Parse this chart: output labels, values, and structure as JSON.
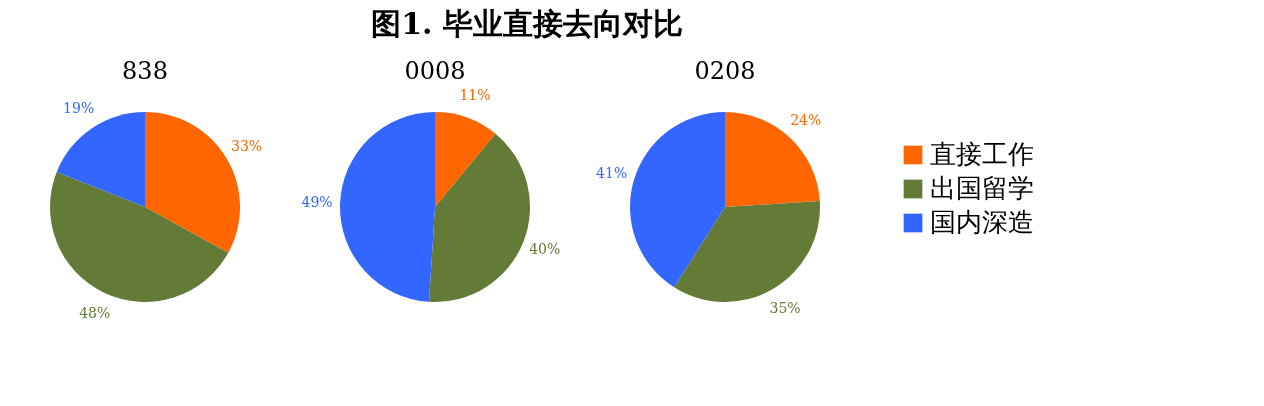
{
  "chart_data": [
    {
      "type": "pie",
      "title": "838",
      "annotations": [
        "图1.    毕业直接去向对比"
      ],
      "categories": [
        "直接工作",
        "出国留学",
        "国内深造"
      ],
      "values": [
        33,
        48,
        19
      ],
      "colors": [
        "#ff6600",
        "#647a37",
        "#3366ff"
      ],
      "value_labels": [
        "33%",
        "48%",
        "19%"
      ],
      "legend": "right"
    },
    {
      "type": "pie",
      "title": "0008",
      "categories": [
        null,
        null,
        null
      ],
      "values": [
        11,
        40,
        49
      ],
      "colors": [
        "#ff6600",
        "#647a37",
        "#3366ff"
      ],
      "value_labels": [
        "11%",
        "40%",
        "49%"
      ]
    },
    {
      "type": "pie",
      "title": "0208",
      "categories": [
        null,
        null,
        null
      ],
      "values": [
        24,
        35,
        41
      ],
      "colors": [
        "#ff6600",
        "#647a37",
        "#3366ff"
      ],
      "value_labels": [
        "24%",
        "35%",
        "41%"
      ]
    }
  ]
}
